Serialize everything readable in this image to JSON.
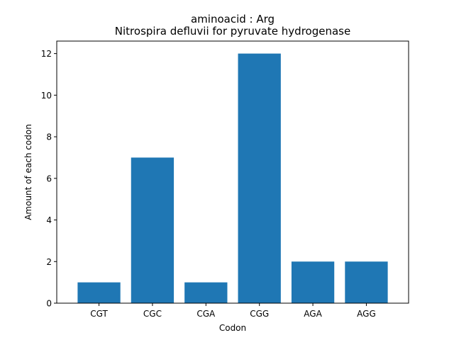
{
  "chart_data": {
    "type": "bar",
    "title": "aminoacid : Arg",
    "subtitle": "Nitrospira defluvii for pyruvate hydrogenase",
    "xlabel": "Codon",
    "ylabel": "Amount of each codon",
    "categories": [
      "CGT",
      "CGC",
      "CGA",
      "CGG",
      "AGA",
      "AGG"
    ],
    "values": [
      1,
      7,
      1,
      12,
      2,
      2
    ],
    "ylim": [
      0,
      12.6
    ],
    "yticks": [
      0,
      2,
      4,
      6,
      8,
      10,
      12
    ],
    "bar_color": "#1f77b4",
    "grid": false,
    "legend": false
  }
}
